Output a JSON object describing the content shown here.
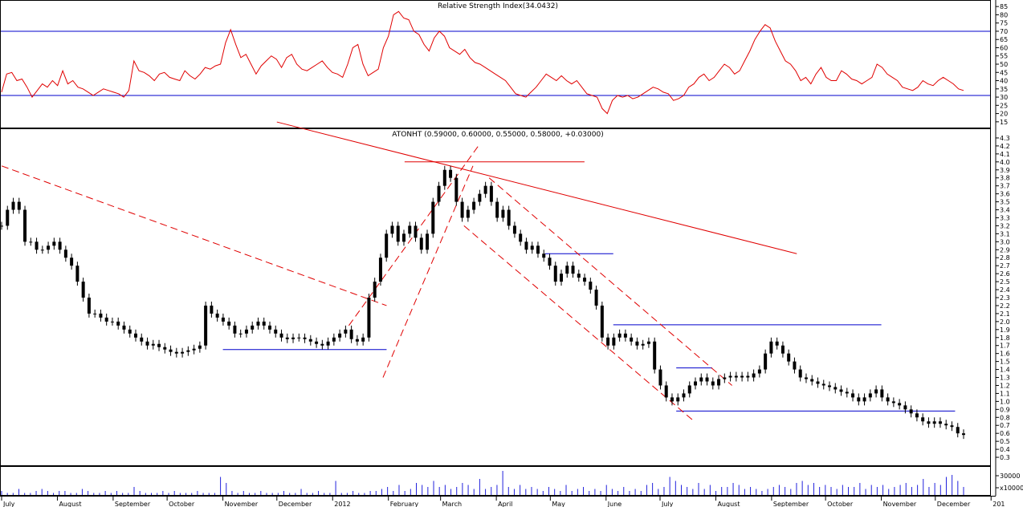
{
  "chart_data": [
    {
      "type": "line",
      "title": "Relative Strength Index(34.0432)",
      "ylim": [
        12,
        88
      ],
      "y_ticks": [
        "15",
        "20",
        "25",
        "30",
        "35",
        "40",
        "45",
        "50",
        "55",
        "60",
        "65",
        "70",
        "75",
        "80",
        "85"
      ],
      "reference_lines": [
        70,
        31
      ],
      "colors": {
        "series": "#e00000",
        "reference": "#0000cc"
      },
      "series": [
        {
          "values": [
            33,
            44,
            45,
            40,
            41,
            36,
            30,
            34,
            38,
            36,
            40,
            37,
            46,
            38,
            40,
            36,
            35,
            33,
            31,
            33,
            35,
            34,
            33,
            32,
            30,
            34,
            52,
            46,
            45,
            43,
            40,
            44,
            45,
            42,
            41,
            40,
            46,
            43,
            41,
            44,
            48,
            47,
            49,
            50,
            63,
            71,
            62,
            54,
            56,
            50,
            44,
            49,
            52,
            55,
            53,
            48,
            54,
            56,
            50,
            47,
            46,
            48,
            50,
            52,
            48,
            45,
            44,
            42,
            50,
            60,
            62,
            50,
            43,
            45,
            47,
            60,
            67,
            80,
            82,
            78,
            77,
            70,
            68,
            62,
            58,
            66,
            70,
            67,
            60,
            58,
            56,
            59,
            54,
            51,
            50,
            48,
            46,
            44,
            42,
            40,
            36,
            32,
            31,
            30,
            33,
            36,
            40,
            44,
            42,
            40,
            43,
            40,
            38,
            40,
            36,
            32,
            31,
            30,
            23,
            20,
            28,
            31,
            30,
            31,
            29,
            30,
            32,
            34,
            36,
            35,
            33,
            32,
            28,
            29,
            31,
            36,
            38,
            42,
            44,
            40,
            42,
            46,
            50,
            48,
            44,
            46,
            52,
            58,
            65,
            70,
            74,
            72,
            64,
            58,
            52,
            50,
            46,
            40,
            42,
            38,
            44,
            48,
            42,
            40,
            40,
            46,
            44,
            41,
            40,
            38,
            40,
            42,
            50,
            48,
            44,
            42,
            40,
            36,
            35,
            34,
            36,
            40,
            38,
            37,
            40,
            42,
            40,
            38,
            35,
            34
          ]
        }
      ]
    },
    {
      "type": "line",
      "title": "ATONHT (0.59000, 0.60000, 0.55000, 0.58000, +0.03000)",
      "ylim": [
        0.2,
        4.4
      ],
      "y_ticks": [
        "0.3",
        "0.4",
        "0.5",
        "0.6",
        "0.7",
        "0.8",
        "0.9",
        "1.0",
        "1.1",
        "1.2",
        "1.3",
        "1.4",
        "1.5",
        "1.6",
        "1.7",
        "1.8",
        "1.9",
        "2.0",
        "2.1",
        "2.2",
        "2.3",
        "2.4",
        "2.5",
        "2.6",
        "2.7",
        "2.8",
        "2.9",
        "3.0",
        "3.1",
        "3.2",
        "3.3",
        "3.4",
        "3.5",
        "3.6",
        "3.7",
        "3.8",
        "3.9",
        "4.0",
        "4.1",
        "4.2",
        "4.3"
      ],
      "x_labels": [
        "July",
        "August",
        "September",
        "October",
        "November",
        "December",
        "2012",
        "February",
        "March",
        "April",
        "May",
        "June",
        "July",
        "August",
        "September",
        "October",
        "November",
        "December",
        "201"
      ],
      "colors": {
        "price": "#000000",
        "trend": "#e00000",
        "support": "#0000cc"
      },
      "series": [
        {
          "name": "ATONHT",
          "values": [
            3.2,
            3.4,
            3.5,
            3.4,
            3.0,
            3.0,
            2.9,
            2.9,
            2.95,
            3.0,
            2.9,
            2.8,
            2.7,
            2.5,
            2.3,
            2.1,
            2.1,
            2.05,
            2.0,
            2.0,
            1.95,
            1.9,
            1.85,
            1.8,
            1.75,
            1.7,
            1.72,
            1.68,
            1.65,
            1.62,
            1.6,
            1.62,
            1.64,
            1.66,
            1.7,
            2.2,
            2.1,
            2.05,
            2.0,
            1.95,
            1.85,
            1.85,
            1.9,
            1.95,
            2.0,
            1.95,
            1.9,
            1.85,
            1.8,
            1.78,
            1.8,
            1.8,
            1.78,
            1.75,
            1.72,
            1.7,
            1.75,
            1.8,
            1.85,
            1.9,
            1.78,
            1.75,
            1.8,
            2.3,
            2.5,
            2.8,
            3.1,
            3.2,
            3.0,
            3.1,
            3.2,
            3.05,
            2.9,
            3.1,
            3.5,
            3.7,
            3.9,
            3.8,
            3.5,
            3.3,
            3.4,
            3.5,
            3.6,
            3.7,
            3.5,
            3.3,
            3.4,
            3.2,
            3.1,
            3.0,
            2.9,
            2.95,
            2.85,
            2.8,
            2.7,
            2.5,
            2.6,
            2.7,
            2.6,
            2.55,
            2.5,
            2.4,
            2.2,
            1.8,
            1.7,
            1.8,
            1.85,
            1.8,
            1.75,
            1.7,
            1.72,
            1.75,
            1.4,
            1.2,
            1.05,
            1.0,
            1.05,
            1.1,
            1.2,
            1.25,
            1.3,
            1.25,
            1.2,
            1.28,
            1.3,
            1.32,
            1.3,
            1.32,
            1.3,
            1.35,
            1.4,
            1.6,
            1.75,
            1.7,
            1.6,
            1.5,
            1.4,
            1.3,
            1.28,
            1.25,
            1.22,
            1.2,
            1.18,
            1.15,
            1.12,
            1.1,
            1.05,
            1.0,
            1.05,
            1.1,
            1.15,
            1.05,
            1.0,
            0.98,
            0.95,
            0.9,
            0.85,
            0.8,
            0.75,
            0.72,
            0.75,
            0.72,
            0.7,
            0.68,
            0.6,
            0.58
          ]
        }
      ],
      "annotations": {
        "trend_lines": [
          {
            "x": [
              "2011-07-01",
              "2012-01-31"
            ],
            "y": [
              3.95,
              2.2
            ]
          },
          {
            "x": [
              "2011-12-01",
              "2012-09-15"
            ],
            "y": [
              4.5,
              2.85
            ]
          },
          {
            "x": [
              "2012-01-29",
              "2012-03-19"
            ],
            "y": [
              1.3,
              3.95
            ]
          },
          {
            "x": [
              "2012-01-10",
              "2012-03-22"
            ],
            "y": [
              1.95,
              4.2
            ]
          },
          {
            "x": [
              "2012-03-14",
              "2012-07-20"
            ],
            "y": [
              3.2,
              0.75
            ]
          },
          {
            "x": [
              "2012-03-28",
              "2012-08-10"
            ],
            "y": [
              3.8,
              1.2
            ]
          }
        ],
        "horizontal_lines": [
          {
            "y": 1.65,
            "color": "blue"
          },
          {
            "y": 4.0,
            "color": "red"
          },
          {
            "y": 2.85,
            "color": "blue"
          },
          {
            "y": 1.96,
            "color": "blue"
          },
          {
            "y": 1.42,
            "color": "blue"
          },
          {
            "y": 0.88,
            "color": "blue"
          }
        ]
      }
    },
    {
      "type": "bar",
      "title": "",
      "y_ticks": [
        "30000",
        "x10000"
      ],
      "colors": {
        "bars": "#2222dd"
      },
      "values": [
        2,
        1,
        1,
        3,
        1,
        1,
        2,
        3,
        2,
        1,
        2,
        2,
        1,
        1,
        3,
        2,
        1,
        1,
        2,
        1,
        2,
        1,
        1,
        4,
        2,
        1,
        1,
        1,
        2,
        1,
        2,
        1,
        1,
        1,
        2,
        1,
        1,
        1,
        9,
        6,
        2,
        1,
        2,
        1,
        1,
        2,
        1,
        1,
        1,
        2,
        1,
        1,
        3,
        1,
        1,
        2,
        1,
        1,
        7,
        1,
        1,
        2,
        1,
        1,
        2,
        2,
        3,
        4,
        2,
        5,
        2,
        3,
        6,
        5,
        4,
        7,
        4,
        5,
        3,
        4,
        6,
        5,
        3,
        8,
        3,
        4,
        5,
        12,
        4,
        3,
        5,
        3,
        4,
        3,
        2,
        4,
        3,
        2,
        5,
        2,
        3,
        4,
        2,
        3,
        2,
        5,
        3,
        2,
        4,
        2,
        3,
        2,
        5,
        6,
        3,
        4,
        9,
        7,
        5,
        4,
        3,
        6,
        3,
        5,
        2,
        4,
        4,
        6,
        5,
        3,
        4,
        3,
        2,
        3,
        4,
        5,
        4,
        3,
        6,
        7,
        5,
        6,
        4,
        5,
        4,
        3,
        5,
        4,
        4,
        6,
        3,
        5,
        4,
        5,
        3,
        4,
        5,
        6,
        4,
        5,
        8,
        4,
        6,
        5,
        9,
        10,
        7,
        4
      ]
    }
  ]
}
